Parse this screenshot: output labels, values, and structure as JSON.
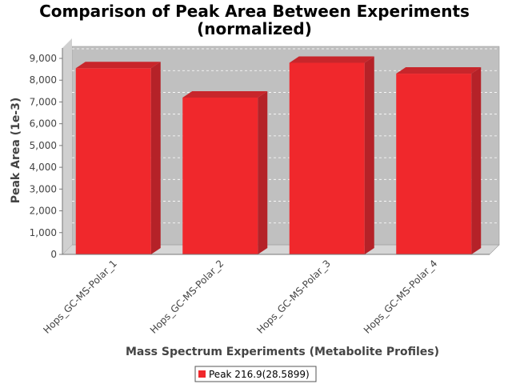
{
  "chart_data": {
    "type": "bar",
    "title_line1": "Comparison of Peak Area Between Experiments",
    "title_line2": "(normalized)",
    "xlabel": "Mass Spectrum Experiments (Metabolite Profiles)",
    "ylabel": "Peak Area (1e-3)",
    "categories": [
      "Hops_GC-MS-Polar_1",
      "Hops_GC-MS-Polar_2",
      "Hops_GC-MS-Polar_3",
      "Hops_GC-MS-Polar_4"
    ],
    "series": [
      {
        "name": "Peak 216.9(28.5899)",
        "values": [
          8550,
          7200,
          8800,
          8300
        ]
      }
    ],
    "ylim": [
      0,
      9000
    ],
    "yticks": [
      0,
      1000,
      2000,
      3000,
      4000,
      5000,
      6000,
      7000,
      8000,
      9000
    ],
    "ytick_labels": [
      "0",
      "1,000",
      "2,000",
      "3,000",
      "4,000",
      "5,000",
      "6,000",
      "7,000",
      "8,000",
      "9,000"
    ],
    "grid": true,
    "legend_position": "bottom",
    "colors": {
      "bar_front": "#f0282c",
      "bar_side": "#b52228",
      "bar_top": "#c8262b",
      "plot_back": "#c0c0c0",
      "plot_floor": "#d6d6d6",
      "grid": "#ffffff"
    }
  }
}
